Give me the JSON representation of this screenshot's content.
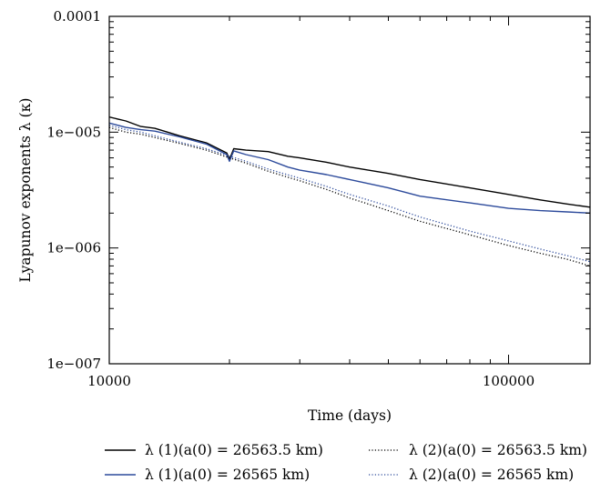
{
  "chart_data": {
    "type": "line",
    "xlabel": "Time (days)",
    "ylabel": "Lyapunov exponents λ (κ)",
    "x_scale": "log",
    "y_scale": "log",
    "xlim": [
      10000,
      160000
    ],
    "ylim": [
      1e-07,
      0.0001
    ],
    "x_ticks": [
      10000,
      100000
    ],
    "x_tick_labels": [
      "10000",
      "100000"
    ],
    "y_ticks": [
      1e-07,
      1e-06,
      1e-05,
      0.0001
    ],
    "y_tick_labels": [
      "1e−007",
      "1e−006",
      "1e−005",
      "0.0001"
    ],
    "grid": false,
    "legend_position": "bottom",
    "series": [
      {
        "name": "λ (1)(a(0) = 26563.5 km)",
        "color": "#000000",
        "dash": "solid",
        "x": [
          10000,
          11000,
          12000,
          13000,
          15000,
          17500,
          19700,
          20000,
          20500,
          22000,
          25000,
          28000,
          30000,
          35000,
          40000,
          50000,
          60000,
          80000,
          100000,
          120000,
          140000,
          160000
        ],
        "y": [
          1.35e-05,
          1.25e-05,
          1.12e-05,
          1.08e-05,
          9.3e-06,
          8.1e-06,
          6.6e-06,
          5.8e-06,
          7.2e-06,
          7e-06,
          6.8e-06,
          6.2e-06,
          6e-06,
          5.5e-06,
          5e-06,
          4.4e-06,
          3.9e-06,
          3.3e-06,
          2.9e-06,
          2.6e-06,
          2.4e-06,
          2.25e-06
        ]
      },
      {
        "name": "λ (1)(a(0) = 26565 km)",
        "color": "#2c4a9b",
        "dash": "solid",
        "x": [
          10000,
          11000,
          12000,
          13000,
          15000,
          17500,
          19700,
          20000,
          20500,
          22000,
          25000,
          28000,
          30000,
          35000,
          40000,
          50000,
          60000,
          80000,
          100000,
          120000,
          140000,
          160000
        ],
        "y": [
          1.2e-05,
          1.1e-05,
          1.05e-05,
          1.02e-05,
          9.1e-06,
          7.9e-06,
          6.4e-06,
          5.6e-06,
          6.9e-06,
          6.4e-06,
          5.8e-06,
          5e-06,
          4.7e-06,
          4.3e-06,
          3.9e-06,
          3.3e-06,
          2.8e-06,
          2.45e-06,
          2.2e-06,
          2.1e-06,
          2.05e-06,
          2e-06
        ]
      },
      {
        "name": "λ (2)(a(0) = 26563.5 km)",
        "color": "#000000",
        "dash": "dotted",
        "x": [
          10000,
          11000,
          12000,
          13000,
          15000,
          17500,
          20000,
          22000,
          25000,
          30000,
          35000,
          40000,
          50000,
          60000,
          80000,
          100000,
          120000,
          140000,
          160000
        ],
        "y": [
          1.1e-05,
          1e-05,
          9.6e-06,
          9e-06,
          8e-06,
          7e-06,
          6e-06,
          5.4e-06,
          4.6e-06,
          3.8e-06,
          3.2e-06,
          2.7e-06,
          2.1e-06,
          1.7e-06,
          1.3e-06,
          1.05e-06,
          9e-07,
          8e-07,
          7e-07
        ]
      },
      {
        "name": "λ (2)(a(0) = 26565 km)",
        "color": "#2c4a9b",
        "dash": "dotted",
        "x": [
          10000,
          11000,
          12000,
          13000,
          15000,
          17500,
          20000,
          22000,
          25000,
          30000,
          35000,
          40000,
          50000,
          60000,
          80000,
          100000,
          120000,
          140000,
          160000
        ],
        "y": [
          1.15e-05,
          1.05e-05,
          1e-05,
          9.3e-06,
          8.2e-06,
          7.2e-06,
          6.2e-06,
          5.6e-06,
          4.8e-06,
          4e-06,
          3.4e-06,
          2.9e-06,
          2.3e-06,
          1.85e-06,
          1.4e-06,
          1.15e-06,
          9.8e-07,
          8.6e-07,
          7.6e-07
        ]
      }
    ]
  }
}
